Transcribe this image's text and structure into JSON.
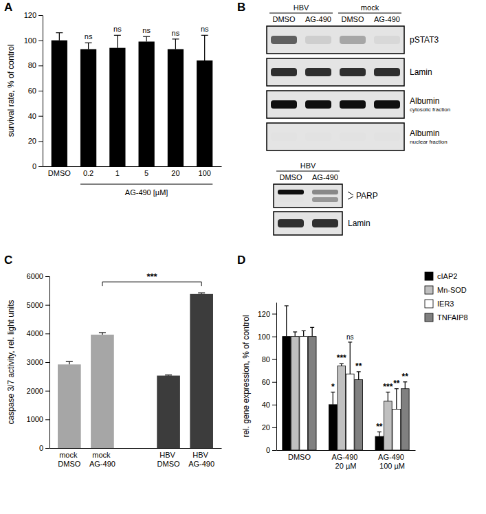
{
  "chart_data": [
    {
      "panel": "A",
      "type": "bar",
      "categories": [
        "DMSO",
        "0.2",
        "1",
        "5",
        "20",
        "100"
      ],
      "values": [
        100,
        93,
        94,
        99,
        93,
        84
      ],
      "errors": [
        6,
        5,
        10,
        4,
        8,
        20
      ],
      "annotations": [
        null,
        "ns",
        "ns",
        "ns",
        "ns",
        "ns"
      ],
      "group": {
        "label": "AG-490 [µM]",
        "from": 1,
        "to": 5
      },
      "y_label": "survival rate, % of control",
      "color": "#000000",
      "ylim": [
        0,
        120
      ],
      "yticks": [
        0,
        20,
        40,
        60,
        80,
        100,
        120
      ]
    },
    {
      "panel": "C",
      "type": "bar",
      "categories": [
        "mock DMSO",
        "mock AG-490",
        null,
        "HBV DMSO",
        "HBV AG-490"
      ],
      "values": [
        2920,
        3960,
        null,
        2530,
        5380
      ],
      "errors": [
        100,
        70,
        null,
        20,
        40
      ],
      "colors": [
        "#a6a6a6",
        "#a6a6a6",
        null,
        "#3c3c3c",
        "#3c3c3c"
      ],
      "annotations": [
        {
          "text": "***",
          "from": 1,
          "to": 4
        }
      ],
      "y_label": "caspase 3/7 activity, rel. light units",
      "ylim": [
        0,
        6000
      ],
      "yticks": [
        0,
        1000,
        2000,
        3000,
        4000,
        5000,
        6000
      ]
    },
    {
      "panel": "D",
      "type": "bar",
      "categories": [
        "DMSO",
        "AG-490 20 µM",
        "AG-490 100 µM"
      ],
      "series": [
        {
          "name": "cIAP2",
          "color": "#000000",
          "values": [
            100,
            40,
            12
          ],
          "errors": [
            27,
            11,
            4
          ],
          "annotations": [
            null,
            "*",
            "**"
          ]
        },
        {
          "name": "Mn-SOD",
          "color": "#c0c0c0",
          "values": [
            100,
            74,
            43
          ],
          "errors": [
            4,
            2,
            8
          ],
          "annotations": [
            null,
            "***",
            "***"
          ]
        },
        {
          "name": "IER3",
          "color": "#ffffff",
          "values": [
            100,
            67,
            36
          ],
          "errors": [
            5,
            28,
            18
          ],
          "annotations": [
            null,
            "ns",
            "**"
          ]
        },
        {
          "name": "TNFAIP8",
          "color": "#808080",
          "values": [
            100,
            62,
            54
          ],
          "errors": [
            8,
            7,
            6
          ],
          "annotations": [
            null,
            "**",
            "**"
          ]
        }
      ],
      "legend": "top-right",
      "y_label": "rel. gene expression, % of control",
      "ylim": [
        0,
        130
      ],
      "yticks": [
        0,
        20,
        40,
        60,
        80,
        100,
        120
      ]
    }
  ],
  "blot": {
    "panel": "B",
    "blots": [
      {
        "groups": [
          {
            "label": "HBV",
            "from": 0,
            "to": 1
          },
          {
            "label": "mock",
            "from": 2,
            "to": 3
          }
        ],
        "lanes": [
          "DMSO",
          "AG-490",
          "DMSO",
          "AG-490"
        ],
        "rows": [
          {
            "label": "pSTAT3",
            "intensity": [
              0.7,
              0.3,
              0.45,
              0.25
            ]
          },
          {
            "label": "Lamin",
            "intensity": [
              0.85,
              0.85,
              0.85,
              0.85
            ]
          },
          {
            "label": "Albumin",
            "sublabel": "cytosolic fraction",
            "intensity": [
              0.95,
              0.95,
              0.95,
              0.95
            ]
          },
          {
            "label": "Albumin",
            "sublabel": "nuclear fraction",
            "intensity": [
              0.2,
              0.2,
              0.2,
              0.2
            ]
          }
        ]
      },
      {
        "groups": [
          {
            "label": "HBV",
            "from": 0,
            "to": 1
          }
        ],
        "lanes": [
          "DMSO",
          "AG-490"
        ],
        "rows": [
          {
            "label": "PARP",
            "intensity": [
              [
                0.95,
                0.2
              ],
              [
                0.55,
                0.5
              ]
            ]
          },
          {
            "label": "Lamin",
            "intensity": [
              0.85,
              0.85
            ]
          }
        ]
      }
    ]
  }
}
